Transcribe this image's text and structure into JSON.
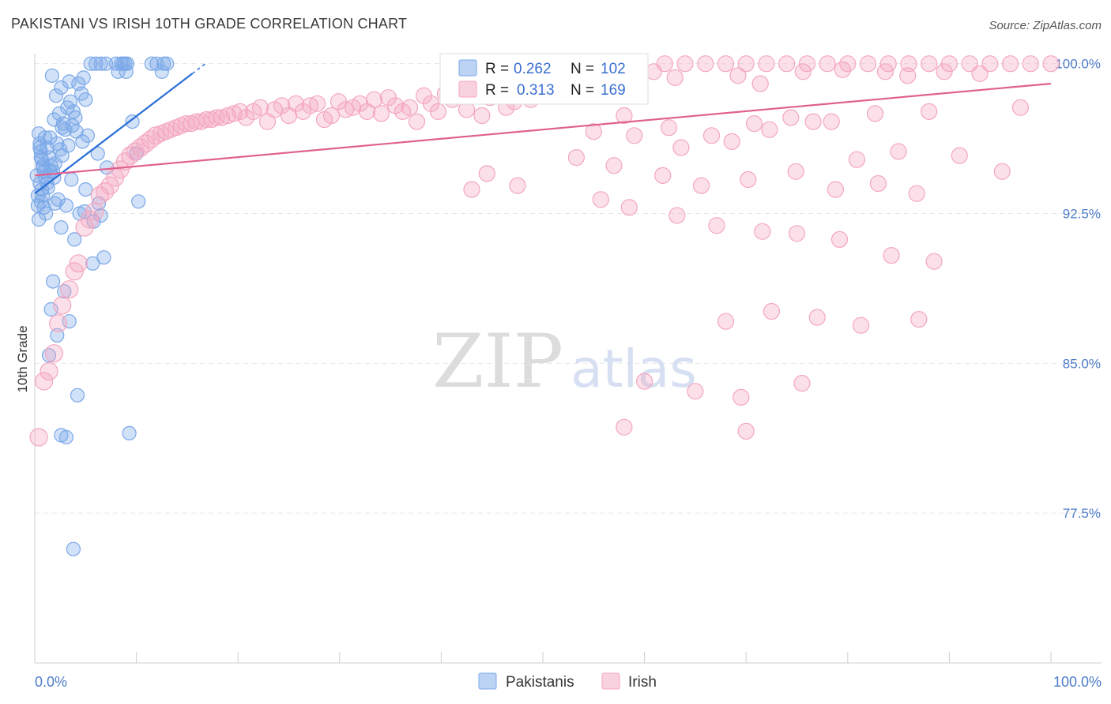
{
  "title": "PAKISTANI VS IRISH 10TH GRADE CORRELATION CHART",
  "source": "Source: ZipAtlas.com",
  "watermark": {
    "zip": "ZIP",
    "atlas": "atlas"
  },
  "chart_data": {
    "type": "scatter",
    "xlabel": "",
    "ylabel": "10th Grade",
    "xlim": [
      0,
      100
    ],
    "ylim": [
      70.0,
      100.5
    ],
    "x_tick_labels": [
      "0.0%",
      "100.0%"
    ],
    "y_ticks": [
      {
        "value": 100.0,
        "label": "100.0%"
      },
      {
        "value": 92.5,
        "label": "92.5%"
      },
      {
        "value": 85.0,
        "label": "85.0%"
      },
      {
        "value": 77.5,
        "label": "77.5%"
      }
    ],
    "grid": true,
    "legend": {
      "position": "top-center",
      "entries": [
        {
          "r_label": "R =",
          "r_value": "0.262",
          "n_label": "N =",
          "n_value": "102"
        },
        {
          "r_label": "R =",
          "r_value": "0.313",
          "n_label": "N =",
          "n_value": "169"
        }
      ]
    },
    "series": [
      {
        "name": "Pakistanis",
        "color": "#7aa8e8",
        "line_color": "#2a6fd6",
        "trend": {
          "x": [
            0,
            15.5
          ],
          "y": [
            93.5,
            99.5
          ]
        },
        "trend_ext": {
          "x": [
            15.5,
            16.8
          ],
          "y": [
            99.5,
            100.0
          ]
        },
        "points": [
          [
            0.4,
            96.5
          ],
          [
            0.5,
            96.0
          ],
          [
            0.6,
            95.6
          ],
          [
            0.7,
            95.2
          ],
          [
            0.8,
            94.9
          ],
          [
            0.9,
            94.6
          ],
          [
            1.0,
            94.3
          ],
          [
            0.5,
            94.0
          ],
          [
            0.7,
            93.7
          ],
          [
            0.8,
            93.4
          ],
          [
            0.6,
            93.1
          ],
          [
            0.9,
            92.8
          ],
          [
            1.1,
            92.5
          ],
          [
            0.4,
            92.2
          ],
          [
            1.2,
            95.8
          ],
          [
            1.4,
            95.3
          ],
          [
            1.6,
            94.9
          ],
          [
            1.8,
            94.6
          ],
          [
            2.0,
            95.0
          ],
          [
            1.5,
            96.3
          ],
          [
            2.2,
            96.0
          ],
          [
            2.5,
            95.7
          ],
          [
            2.7,
            95.4
          ],
          [
            1.9,
            97.2
          ],
          [
            2.4,
            97.5
          ],
          [
            2.8,
            97.0
          ],
          [
            3.0,
            96.7
          ],
          [
            3.2,
            97.8
          ],
          [
            3.5,
            98.1
          ],
          [
            3.8,
            97.6
          ],
          [
            4.0,
            97.3
          ],
          [
            2.1,
            98.4
          ],
          [
            2.6,
            98.8
          ],
          [
            3.4,
            99.1
          ],
          [
            1.7,
            99.4
          ],
          [
            4.3,
            99.0
          ],
          [
            4.6,
            98.5
          ],
          [
            5.0,
            98.2
          ],
          [
            4.8,
            99.3
          ],
          [
            5.5,
            100.0
          ],
          [
            6.0,
            100.0
          ],
          [
            6.5,
            100.0
          ],
          [
            7.0,
            100.0
          ],
          [
            8.0,
            100.0
          ],
          [
            8.5,
            100.0
          ],
          [
            8.7,
            100.0
          ],
          [
            8.9,
            100.0
          ],
          [
            9.1,
            100.0
          ],
          [
            11.5,
            100.0
          ],
          [
            12.0,
            100.0
          ],
          [
            12.7,
            100.0
          ],
          [
            13.0,
            100.0
          ],
          [
            8.2,
            99.6
          ],
          [
            9.0,
            99.6
          ],
          [
            12.5,
            99.6
          ],
          [
            5.2,
            96.4
          ],
          [
            4.1,
            96.6
          ],
          [
            3.7,
            96.9
          ],
          [
            6.2,
            95.5
          ],
          [
            7.1,
            94.8
          ],
          [
            9.6,
            97.1
          ],
          [
            10.0,
            95.5
          ],
          [
            1.3,
            93.8
          ],
          [
            2.3,
            93.2
          ],
          [
            3.1,
            92.9
          ],
          [
            4.4,
            92.5
          ],
          [
            5.8,
            92.1
          ],
          [
            6.3,
            93.0
          ],
          [
            10.2,
            93.1
          ],
          [
            2.6,
            91.8
          ],
          [
            3.9,
            91.2
          ],
          [
            5.7,
            90.0
          ],
          [
            6.8,
            90.3
          ],
          [
            1.8,
            89.1
          ],
          [
            2.9,
            88.6
          ],
          [
            1.6,
            87.7
          ],
          [
            3.4,
            87.1
          ],
          [
            2.2,
            86.4
          ],
          [
            1.4,
            85.4
          ],
          [
            4.2,
            83.4
          ],
          [
            2.6,
            81.4
          ],
          [
            3.1,
            81.3
          ],
          [
            9.3,
            81.5
          ],
          [
            3.8,
            75.7
          ],
          [
            0.3,
            93.4
          ],
          [
            0.3,
            92.9
          ],
          [
            0.6,
            95.3
          ],
          [
            0.2,
            94.4
          ],
          [
            1.0,
            96.3
          ],
          [
            1.9,
            94.3
          ],
          [
            3.3,
            95.9
          ],
          [
            4.7,
            96.1
          ],
          [
            2.0,
            93.0
          ],
          [
            1.2,
            94.0
          ],
          [
            0.8,
            94.8
          ],
          [
            5.0,
            93.7
          ],
          [
            6.5,
            92.4
          ],
          [
            4.9,
            92.6
          ],
          [
            0.5,
            95.8
          ],
          [
            1.5,
            94.6
          ],
          [
            2.7,
            96.8
          ],
          [
            3.6,
            94.2
          ]
        ]
      },
      {
        "name": "Irish",
        "color": "#f4a6c0",
        "line_color": "#e0608e",
        "trend": {
          "x": [
            0,
            100
          ],
          "y": [
            94.4,
            99.0
          ]
        },
        "points": [
          [
            0.4,
            81.3
          ],
          [
            0.9,
            84.1
          ],
          [
            1.4,
            84.6
          ],
          [
            1.9,
            85.5
          ],
          [
            2.3,
            87.0
          ],
          [
            2.7,
            87.9
          ],
          [
            3.4,
            88.7
          ],
          [
            3.9,
            89.6
          ],
          [
            4.3,
            90.0
          ],
          [
            4.9,
            91.8
          ],
          [
            5.4,
            92.2
          ],
          [
            5.9,
            92.6
          ],
          [
            6.4,
            93.4
          ],
          [
            6.9,
            93.6
          ],
          [
            7.4,
            93.9
          ],
          [
            7.9,
            94.3
          ],
          [
            8.4,
            94.7
          ],
          [
            8.9,
            95.1
          ],
          [
            9.4,
            95.4
          ],
          [
            9.9,
            95.6
          ],
          [
            10.4,
            95.8
          ],
          [
            10.9,
            96.0
          ],
          [
            11.4,
            96.2
          ],
          [
            11.9,
            96.4
          ],
          [
            12.4,
            96.5
          ],
          [
            12.9,
            96.6
          ],
          [
            13.4,
            96.7
          ],
          [
            13.9,
            96.8
          ],
          [
            14.4,
            96.9
          ],
          [
            14.9,
            97.0
          ],
          [
            15.4,
            97.0
          ],
          [
            15.9,
            97.1
          ],
          [
            16.4,
            97.1
          ],
          [
            16.9,
            97.2
          ],
          [
            17.4,
            97.2
          ],
          [
            17.9,
            97.3
          ],
          [
            18.4,
            97.3
          ],
          [
            19.0,
            97.4
          ],
          [
            19.6,
            97.5
          ],
          [
            20.2,
            97.6
          ],
          [
            20.8,
            97.3
          ],
          [
            21.5,
            97.6
          ],
          [
            22.2,
            97.8
          ],
          [
            22.9,
            97.1
          ],
          [
            23.6,
            97.7
          ],
          [
            24.3,
            97.9
          ],
          [
            25.0,
            97.4
          ],
          [
            25.7,
            98.0
          ],
          [
            26.4,
            97.6
          ],
          [
            27.1,
            97.9
          ],
          [
            27.8,
            98.0
          ],
          [
            28.5,
            97.2
          ],
          [
            29.2,
            97.4
          ],
          [
            29.9,
            98.1
          ],
          [
            30.6,
            97.7
          ],
          [
            31.3,
            97.8
          ],
          [
            32.0,
            98.0
          ],
          [
            32.7,
            97.6
          ],
          [
            33.4,
            98.2
          ],
          [
            34.1,
            97.5
          ],
          [
            34.8,
            98.3
          ],
          [
            35.5,
            97.9
          ],
          [
            36.2,
            97.6
          ],
          [
            36.9,
            97.8
          ],
          [
            37.6,
            97.1
          ],
          [
            38.3,
            98.4
          ],
          [
            39.0,
            98.0
          ],
          [
            39.7,
            97.6
          ],
          [
            40.4,
            98.5
          ],
          [
            41.1,
            98.2
          ],
          [
            41.8,
            98.6
          ],
          [
            42.5,
            97.7
          ],
          [
            43.2,
            98.7
          ],
          [
            44.0,
            97.4
          ],
          [
            44.8,
            98.3
          ],
          [
            45.6,
            98.8
          ],
          [
            46.4,
            97.8
          ],
          [
            47.2,
            98.1
          ],
          [
            48.0,
            98.6
          ],
          [
            48.8,
            98.2
          ],
          [
            49.6,
            99.0
          ],
          [
            50.4,
            98.4
          ],
          [
            51.2,
            98.9
          ],
          [
            52.0,
            99.2
          ],
          [
            52.8,
            98.5
          ],
          [
            53.6,
            99.3
          ],
          [
            54.4,
            99.1
          ],
          [
            55.2,
            99.4
          ],
          [
            56.0,
            99.6
          ],
          [
            56.8,
            99.3
          ],
          [
            57.6,
            99.7
          ],
          [
            60.9,
            99.6
          ],
          [
            62.0,
            100.0
          ],
          [
            64.0,
            100.0
          ],
          [
            66.0,
            100.0
          ],
          [
            68.0,
            100.0
          ],
          [
            70.0,
            100.0
          ],
          [
            72.0,
            100.0
          ],
          [
            74.0,
            100.0
          ],
          [
            76.0,
            100.0
          ],
          [
            78.0,
            100.0
          ],
          [
            80.0,
            100.0
          ],
          [
            82.0,
            100.0
          ],
          [
            84.0,
            100.0
          ],
          [
            86.0,
            100.0
          ],
          [
            88.0,
            100.0
          ],
          [
            90.0,
            100.0
          ],
          [
            92.0,
            100.0
          ],
          [
            94.0,
            100.0
          ],
          [
            96.0,
            100.0
          ],
          [
            98.0,
            100.0
          ],
          [
            100.0,
            100.0
          ],
          [
            63.0,
            99.3
          ],
          [
            71.4,
            99.0
          ],
          [
            69.2,
            99.4
          ],
          [
            75.6,
            99.6
          ],
          [
            79.5,
            99.7
          ],
          [
            83.7,
            99.6
          ],
          [
            85.9,
            99.4
          ],
          [
            89.5,
            99.6
          ],
          [
            93.0,
            99.5
          ],
          [
            58.0,
            97.4
          ],
          [
            62.4,
            96.8
          ],
          [
            66.6,
            96.4
          ],
          [
            70.8,
            97.0
          ],
          [
            74.4,
            97.3
          ],
          [
            78.4,
            97.1
          ],
          [
            82.7,
            97.5
          ],
          [
            88.0,
            97.6
          ],
          [
            97.0,
            97.8
          ],
          [
            55.0,
            96.6
          ],
          [
            59.0,
            96.4
          ],
          [
            63.6,
            95.8
          ],
          [
            68.6,
            96.1
          ],
          [
            72.3,
            96.7
          ],
          [
            76.6,
            97.1
          ],
          [
            80.9,
            95.2
          ],
          [
            85.0,
            95.6
          ],
          [
            91.0,
            95.4
          ],
          [
            95.2,
            94.6
          ],
          [
            53.3,
            95.3
          ],
          [
            57.0,
            94.9
          ],
          [
            61.8,
            94.4
          ],
          [
            65.6,
            93.9
          ],
          [
            70.2,
            94.2
          ],
          [
            74.9,
            94.6
          ],
          [
            78.8,
            93.7
          ],
          [
            83.0,
            94.0
          ],
          [
            86.8,
            93.5
          ],
          [
            58.5,
            92.8
          ],
          [
            63.2,
            92.4
          ],
          [
            67.1,
            91.9
          ],
          [
            71.6,
            91.6
          ],
          [
            75.0,
            91.5
          ],
          [
            79.2,
            91.2
          ],
          [
            84.3,
            90.4
          ],
          [
            88.5,
            90.1
          ],
          [
            68.0,
            87.1
          ],
          [
            72.5,
            87.6
          ],
          [
            77.0,
            87.3
          ],
          [
            81.3,
            86.9
          ],
          [
            87.0,
            87.2
          ],
          [
            60.0,
            84.1
          ],
          [
            65.0,
            83.6
          ],
          [
            69.5,
            83.3
          ],
          [
            75.5,
            84.0
          ],
          [
            58.0,
            81.8
          ],
          [
            70.0,
            81.6
          ],
          [
            43.0,
            93.7
          ],
          [
            44.5,
            94.5
          ],
          [
            47.5,
            93.9
          ],
          [
            55.7,
            93.2
          ]
        ]
      }
    ]
  },
  "bottom_legend": [
    "Pakistanis",
    "Irish"
  ]
}
